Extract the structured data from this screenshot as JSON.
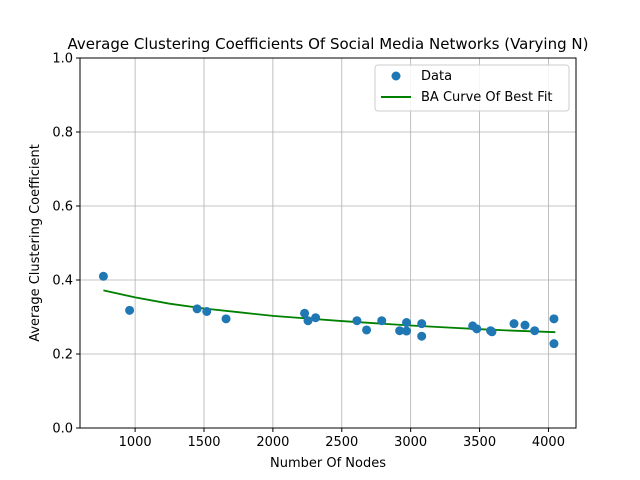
{
  "chart_data": {
    "type": "scatter",
    "title": "Average Clustering Coefficients Of Social Media Networks (Varying N)",
    "xlabel": "Number Of Nodes",
    "ylabel": "Average Clustering Coefficient",
    "xlim": [
      600,
      4200
    ],
    "ylim": [
      0,
      1.0
    ],
    "xticks": [
      1000,
      1500,
      2000,
      2500,
      3000,
      3500,
      4000
    ],
    "yticks": [
      0.0,
      0.2,
      0.4,
      0.6,
      0.8,
      1.0
    ],
    "grid": true,
    "legend_position": "top-right",
    "colors": {
      "data": "#1f77b4",
      "fit": "#008000"
    },
    "series": [
      {
        "name": "Data",
        "kind": "scatter",
        "points": [
          [
            770,
            0.41
          ],
          [
            960,
            0.318
          ],
          [
            1450,
            0.322
          ],
          [
            1520,
            0.315
          ],
          [
            1660,
            0.295
          ],
          [
            2230,
            0.31
          ],
          [
            2255,
            0.29
          ],
          [
            2310,
            0.298
          ],
          [
            2610,
            0.29
          ],
          [
            2680,
            0.265
          ],
          [
            2790,
            0.29
          ],
          [
            2920,
            0.263
          ],
          [
            2970,
            0.285
          ],
          [
            2970,
            0.262
          ],
          [
            3080,
            0.248
          ],
          [
            3080,
            0.282
          ],
          [
            3450,
            0.276
          ],
          [
            3480,
            0.268
          ],
          [
            3580,
            0.263
          ],
          [
            3590,
            0.26
          ],
          [
            3750,
            0.282
          ],
          [
            3830,
            0.278
          ],
          [
            3900,
            0.263
          ],
          [
            4040,
            0.295
          ],
          [
            4040,
            0.228
          ]
        ]
      },
      {
        "name": "BA Curve Of Best Fit",
        "kind": "line",
        "points": [
          [
            770,
            0.372
          ],
          [
            1000,
            0.353
          ],
          [
            1250,
            0.336
          ],
          [
            1500,
            0.323
          ],
          [
            1750,
            0.313
          ],
          [
            2000,
            0.303
          ],
          [
            2250,
            0.296
          ],
          [
            2500,
            0.289
          ],
          [
            2750,
            0.283
          ],
          [
            3000,
            0.277
          ],
          [
            3250,
            0.272
          ],
          [
            3500,
            0.267
          ],
          [
            3750,
            0.263
          ],
          [
            4050,
            0.259
          ]
        ]
      }
    ]
  }
}
